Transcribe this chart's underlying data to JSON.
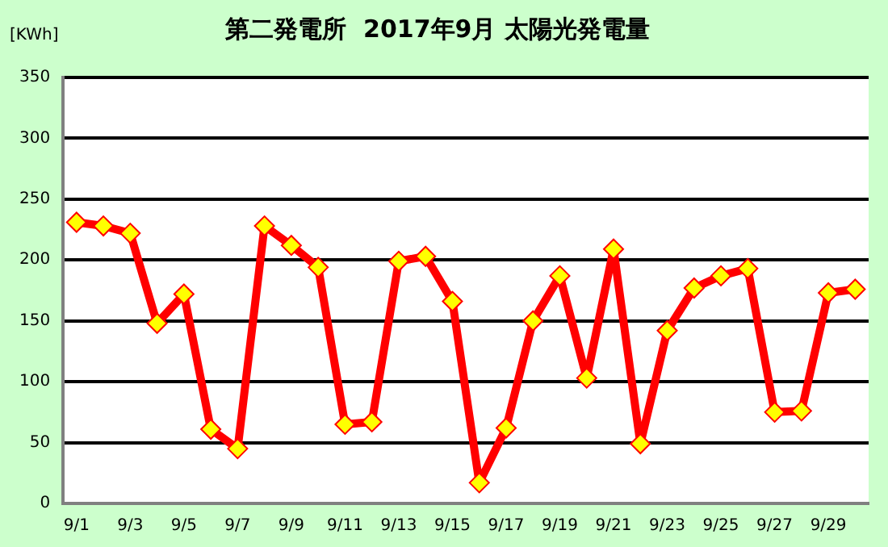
{
  "chart_data": {
    "type": "line",
    "title": "第二発電所  2017年9月 太陽光発電量",
    "ylabel": "[KWh]",
    "categories": [
      "9/1",
      null,
      "9/3",
      null,
      "9/5",
      null,
      "9/7",
      null,
      "9/9",
      null,
      "9/11",
      null,
      "9/13",
      null,
      "9/15",
      null,
      "9/17",
      null,
      "9/19",
      null,
      "9/21",
      null,
      "9/23",
      null,
      "9/25",
      null,
      "9/27",
      null,
      "9/29",
      null
    ],
    "series": [
      {
        "color": "#ff0000",
        "values": [
          231,
          228,
          222,
          148,
          172,
          61,
          45,
          228,
          212,
          194,
          65,
          67,
          199,
          203,
          166,
          17,
          62,
          150,
          187,
          103,
          209,
          49,
          142,
          177,
          187,
          193,
          75,
          76,
          173,
          176
        ]
      }
    ],
    "ylim": [
      0,
      350
    ],
    "yticks": [
      0,
      50,
      100,
      150,
      200,
      250,
      300,
      350
    ],
    "grid": "y",
    "marker": "diamond",
    "line_style": "solid",
    "legend": false
  }
}
